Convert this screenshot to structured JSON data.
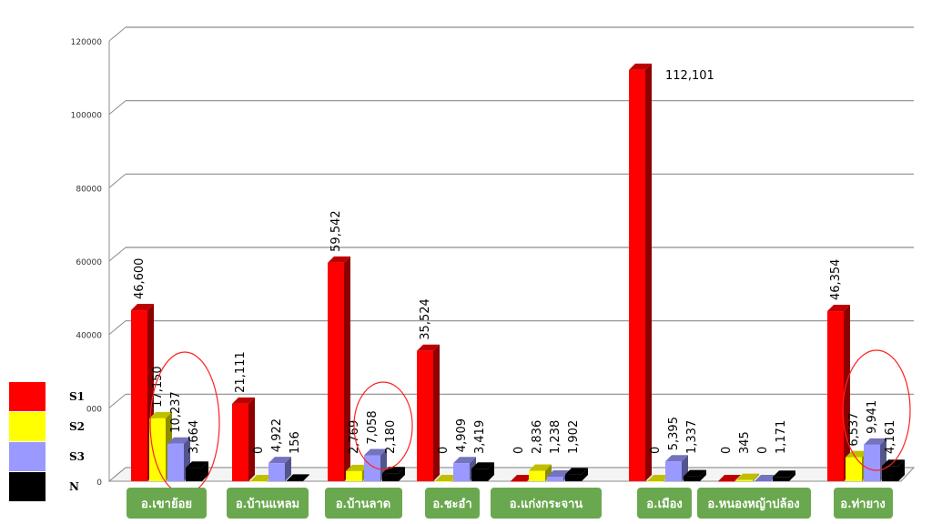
{
  "chart_data": {
    "type": "bar",
    "categories": [
      "อ.เขาย้อย",
      "อ.บ้านแหลม",
      "อ.บ้านลาด",
      "อ.ชะอำ",
      "อ.แก่งกระจาน",
      "อ.เมือง",
      "อ.หนองหญ้าปล้อง",
      "อ.ท่ายาง"
    ],
    "series": [
      {
        "name": "S1",
        "color": "#ff0000",
        "values": [
          46600,
          21111,
          59542,
          35524,
          0,
          112101,
          0,
          46354
        ],
        "labels": [
          "46,600",
          "21,111",
          "59,542",
          "35,524",
          "0",
          "112,101",
          "0",
          "46,354"
        ]
      },
      {
        "name": "S2",
        "color": "#ffff00",
        "values": [
          17150,
          0,
          2769,
          0,
          2836,
          0,
          345,
          6537
        ],
        "labels": [
          "17,150",
          "0",
          "2,769",
          "0",
          "2,836",
          "0",
          "345",
          "6,537"
        ]
      },
      {
        "name": "S3",
        "color": "#9999ff",
        "values": [
          10237,
          4922,
          7058,
          4909,
          1238,
          5395,
          0,
          9941
        ],
        "labels": [
          "10,237",
          "4,922",
          "7,058",
          "4,909",
          "1,238",
          "5,395",
          "0",
          "9,941"
        ]
      },
      {
        "name": "N",
        "color": "#000000",
        "values": [
          3664,
          156,
          2180,
          3419,
          1902,
          1337,
          1171,
          4161
        ],
        "labels": [
          "3,664",
          "156",
          "2,180",
          "3,419",
          "1,902",
          "1,337",
          "1,171",
          "4,161"
        ]
      }
    ],
    "y_ticks": [
      "0",
      "000",
      "40000",
      "60000",
      "80000",
      "100000",
      "120000"
    ],
    "ylim": [
      0,
      120000
    ],
    "grid": true,
    "legend_position": "bottom-left",
    "title": "",
    "xlabel": "",
    "ylabel": ""
  }
}
